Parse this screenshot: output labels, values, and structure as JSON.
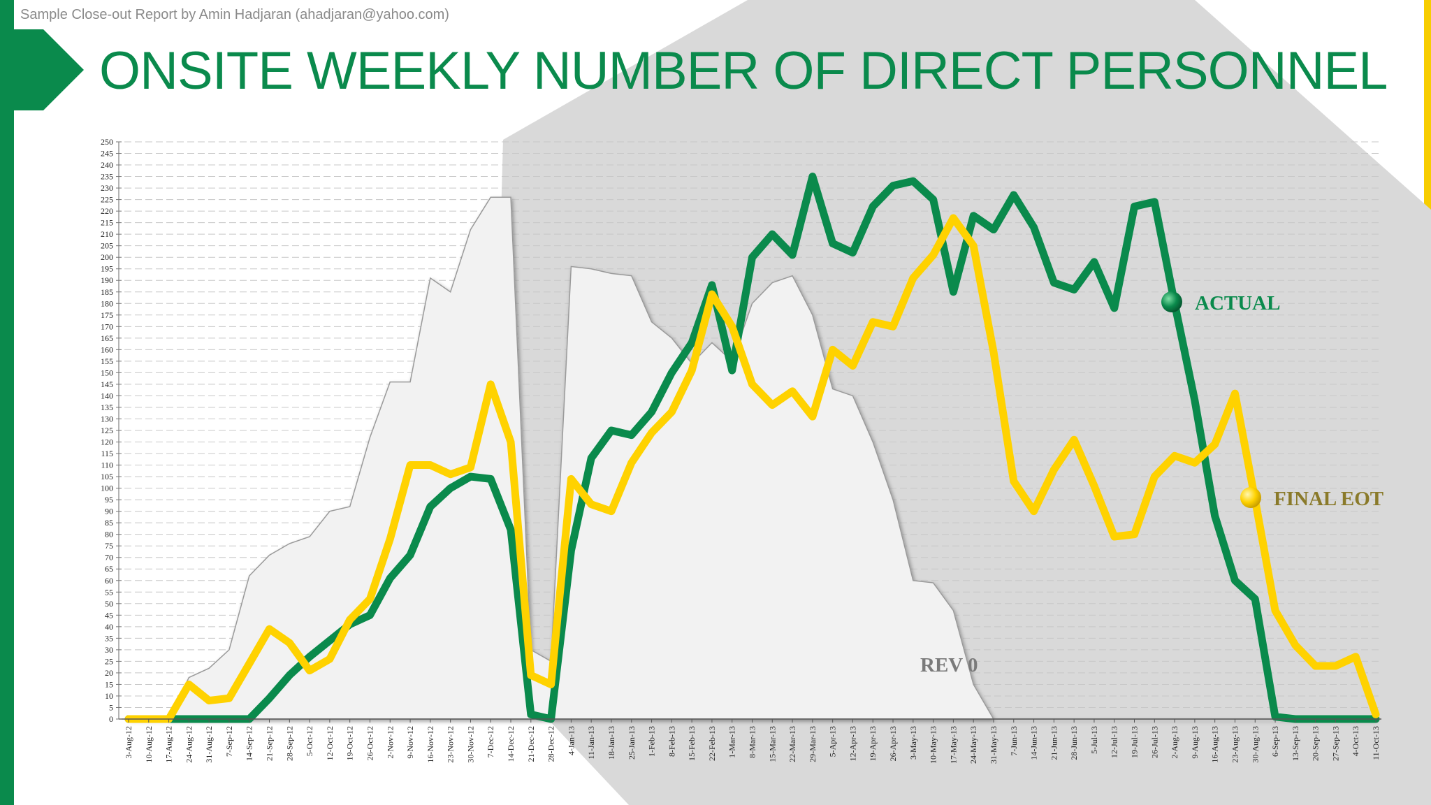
{
  "header": {
    "credit": "Sample Close-out Report by Amin Hadjaran (ahadjaran@yahoo.com)",
    "title": "ONSITE WEEKLY NUMBER OF DIRECT PERSONNEL"
  },
  "colors": {
    "brand_green": "#0a8a4c",
    "brand_yellow": "#f7cd00",
    "actual_line": "#0a8a4c",
    "final_eot_line": "#ffd200",
    "rev0_fill": "#f2f2f2",
    "background_shape": "#d9d9d9"
  },
  "chart_data": {
    "type": "line",
    "title": "ONSITE WEEKLY NUMBER OF DIRECT PERSONNEL",
    "xlabel": "",
    "ylabel": "",
    "ylim": [
      0,
      250
    ],
    "ytick_step": 5,
    "grid": true,
    "categories": [
      "3-Aug-12",
      "10-Aug-12",
      "17-Aug-12",
      "24-Aug-12",
      "31-Aug-12",
      "7-Sep-12",
      "14-Sep-12",
      "21-Sep-12",
      "28-Sep-12",
      "5-Oct-12",
      "12-Oct-12",
      "19-Oct-12",
      "26-Oct-12",
      "2-Nov-12",
      "9-Nov-12",
      "16-Nov-12",
      "23-Nov-12",
      "30-Nov-12",
      "7-Dec-12",
      "14-Dec-12",
      "21-Dec-12",
      "28-Dec-12",
      "4-Jan-13",
      "11-Jan-13",
      "18-Jan-13",
      "25-Jan-13",
      "1-Feb-13",
      "8-Feb-13",
      "15-Feb-13",
      "22-Feb-13",
      "1-Mar-13",
      "8-Mar-13",
      "15-Mar-13",
      "22-Mar-13",
      "29-Mar-13",
      "5-Apr-13",
      "12-Apr-13",
      "19-Apr-13",
      "26-Apr-13",
      "3-May-13",
      "10-May-13",
      "17-May-13",
      "24-May-13",
      "31-May-13",
      "7-Jun-13",
      "14-Jun-13",
      "21-Jun-13",
      "28-Jun-13",
      "5-Jul-13",
      "12-Jul-13",
      "19-Jul-13",
      "26-Jul-13",
      "2-Aug-13",
      "9-Aug-13",
      "16-Aug-13",
      "23-Aug-13",
      "30-Aug-13",
      "6-Sep-13",
      "13-Sep-13",
      "20-Sep-13",
      "27-Sep-13",
      "4-Oct-13",
      "11-Oct-13"
    ],
    "series": [
      {
        "name": "REV 0",
        "label": "REV 0",
        "values": [
          0,
          0,
          0,
          18,
          22,
          30,
          62,
          71,
          76,
          79,
          90,
          92,
          122,
          146,
          146,
          191,
          185,
          212,
          226,
          226,
          30,
          25,
          196,
          195,
          193,
          192,
          172,
          165,
          154,
          163,
          155,
          180,
          189,
          192,
          175,
          143,
          140,
          120,
          95,
          60,
          59,
          47,
          15,
          0,
          0,
          0,
          0,
          0,
          0,
          0,
          0,
          0,
          0,
          0,
          0,
          0,
          0,
          0,
          0,
          0,
          0,
          0,
          0
        ]
      },
      {
        "name": "ACTUAL",
        "label": "ACTUAL",
        "values": [
          0,
          0,
          0,
          0,
          0,
          0,
          0,
          9,
          19,
          27,
          34,
          41,
          45,
          61,
          71,
          92,
          100,
          105,
          104,
          82,
          2,
          0,
          73,
          113,
          125,
          123,
          133,
          150,
          163,
          188,
          151,
          200,
          210,
          201,
          235,
          206,
          202,
          222,
          231,
          233,
          225,
          185,
          218,
          212,
          227,
          213,
          189,
          186,
          198,
          178,
          222,
          224,
          180,
          138,
          88,
          60,
          52,
          1,
          0,
          0,
          0,
          0,
          0
        ]
      },
      {
        "name": "FINAL EOT",
        "label": "FINAL EOT",
        "values": [
          0,
          0,
          0,
          15,
          8,
          9,
          24,
          39,
          33,
          21,
          26,
          43,
          52,
          78,
          110,
          110,
          106,
          109,
          145,
          120,
          19,
          15,
          104,
          93,
          90,
          111,
          124,
          133,
          151,
          184,
          170,
          145,
          136,
          142,
          131,
          160,
          153,
          172,
          170,
          191,
          201,
          217,
          205,
          159,
          103,
          90,
          108,
          121,
          101,
          79,
          80,
          105,
          114,
          111,
          119,
          141,
          95,
          47,
          32,
          23,
          23,
          27,
          2
        ]
      }
    ]
  }
}
